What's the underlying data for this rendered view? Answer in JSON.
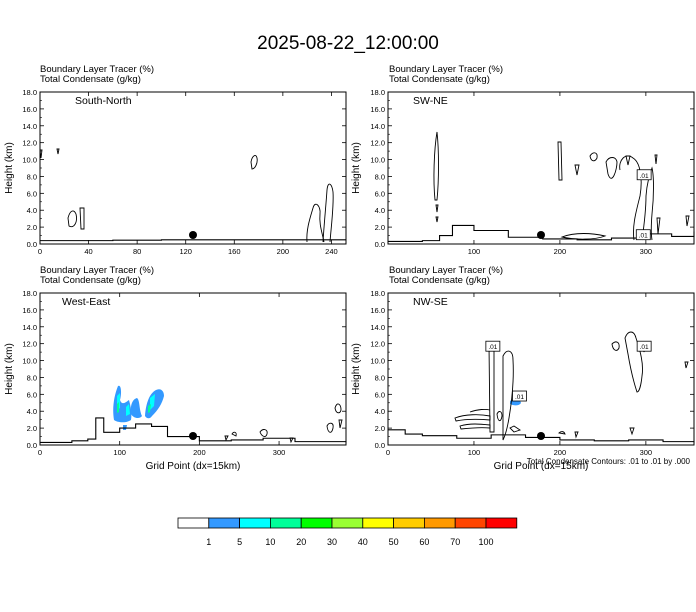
{
  "main_title": "2025-08-22_12:00:00",
  "footnote": "Total Condensate Contours: .01 to .01 by .000",
  "panels": [
    {
      "id": "south-north",
      "name": "South-North",
      "header_line1": "Boundary Layer Tracer   (%)",
      "header_line2": "Total Condensate   (g/kg)",
      "ylabel": "Height (km)",
      "xlabel": "",
      "xlim": [
        0,
        252
      ],
      "ylim": [
        0,
        18
      ],
      "xticks": [
        0,
        40,
        80,
        120,
        160,
        200,
        240
      ],
      "yticks": [
        "0.0",
        "2.0",
        "4.0",
        "6.0",
        "8.0",
        "10.0",
        "12.0",
        "14.0",
        "16.0",
        "18.0"
      ],
      "marker_x": 126,
      "contour_labels": []
    },
    {
      "id": "sw-ne",
      "name": "SW-NE",
      "header_line1": "Boundary Layer Tracer   (%)",
      "header_line2": "Total Condensate   (g/kg)",
      "ylabel": "Height (km)",
      "xlabel": "",
      "xlim": [
        0,
        356
      ],
      "ylim": [
        0,
        18
      ],
      "xticks": [
        100,
        200,
        300
      ],
      "yticks": [
        "0.0",
        "2.0",
        "4.0",
        "6.0",
        "8.0",
        "10.0",
        "12.0",
        "14.0",
        "16.0",
        "18.0"
      ],
      "marker_x": 178,
      "contour_labels": [
        {
          "text": ".01",
          "x": 298,
          "y": 8.2
        },
        {
          "text": ".01",
          "x": 297,
          "y": 1.1
        }
      ]
    },
    {
      "id": "west-east",
      "name": "West-East",
      "header_line1": "Boundary Layer Tracer   (%)",
      "header_line2": "Total Condensate   (g/kg)",
      "ylabel": "Height (km)",
      "xlabel": "Grid Point (dx=15km)",
      "xlim": [
        0,
        384
      ],
      "ylim": [
        0,
        18
      ],
      "xticks": [
        0,
        100,
        200,
        300
      ],
      "yticks": [
        "0.0",
        "2.0",
        "4.0",
        "6.0",
        "8.0",
        "10.0",
        "12.0",
        "14.0",
        "16.0",
        "18.0"
      ],
      "marker_x": 192,
      "contour_labels": []
    },
    {
      "id": "nw-se",
      "name": "NW-SE",
      "header_line1": "Boundary Layer Tracer   (%)",
      "header_line2": "Total Condensate   (g/kg)",
      "ylabel": "Height (km)",
      "xlabel": "Grid Point (dx=15km)",
      "xlim": [
        0,
        356
      ],
      "ylim": [
        0,
        18
      ],
      "xticks": [
        0,
        100,
        200,
        300
      ],
      "yticks": [
        "0.0",
        "2.0",
        "4.0",
        "6.0",
        "8.0",
        "10.0",
        "12.0",
        "14.0",
        "16.0",
        "18.0"
      ],
      "marker_x": 178,
      "contour_labels": [
        {
          "text": ".01",
          "x": 122,
          "y": 11.7
        },
        {
          "text": ".01",
          "x": 153,
          "y": 5.8
        },
        {
          "text": ".01",
          "x": 298,
          "y": 11.7
        }
      ]
    }
  ],
  "colorbar": {
    "labels": [
      "1",
      "5",
      "10",
      "20",
      "30",
      "40",
      "50",
      "60",
      "70",
      "100"
    ],
    "colors": [
      "#ffffff",
      "#3399ff",
      "#00ffff",
      "#00ff99",
      "#00ff00",
      "#99ff33",
      "#ffff00",
      "#ffcc00",
      "#ff9900",
      "#ff4500",
      "#ff0000"
    ]
  },
  "chart_data": [
    {
      "type": "heatmap",
      "title": "South-North",
      "subtitle": "Boundary Layer Tracer (%) / Total Condensate (g/kg)",
      "ylabel": "Height (km)",
      "xlim": [
        0,
        252
      ],
      "ylim": [
        0,
        18
      ],
      "boundary_layer_tracer": "no shaded values",
      "condensate_contour_level": 0.01,
      "pbl_top_profile": {
        "x": [
          0,
          20,
          60,
          100,
          126,
          160,
          200,
          240,
          252
        ],
        "y": [
          0.4,
          0.4,
          0.45,
          0.5,
          0.5,
          0.5,
          0.5,
          0.5,
          0.5
        ]
      }
    },
    {
      "type": "heatmap",
      "title": "SW-NE",
      "subtitle": "Boundary Layer Tracer (%) / Total Condensate (g/kg)",
      "ylabel": "Height (km)",
      "xlim": [
        0,
        356
      ],
      "ylim": [
        0,
        18
      ],
      "boundary_layer_tracer": "no shaded values",
      "condensate_contour_level": 0.01,
      "pbl_top_profile": {
        "x": [
          0,
          40,
          60,
          75,
          100,
          140,
          180,
          220,
          260,
          300,
          330,
          356
        ],
        "y": [
          0.3,
          0.4,
          1.0,
          2.2,
          1.6,
          0.8,
          0.6,
          0.5,
          0.7,
          1.2,
          0.9,
          1.5
        ]
      }
    },
    {
      "type": "heatmap",
      "title": "West-East",
      "subtitle": "Boundary Layer Tracer (%) / Total Condensate (g/kg)",
      "ylabel": "Height (km)",
      "xlabel": "Grid Point (dx=15km)",
      "xlim": [
        0,
        384
      ],
      "ylim": [
        0,
        18
      ],
      "boundary_layer_tracer_shading": "1-10 % between x 90-155, z 1.5-6.5 km",
      "condensate_contour_level": 0.01,
      "pbl_top_profile": {
        "x": [
          0,
          40,
          60,
          70,
          80,
          100,
          120,
          140,
          160,
          200,
          240,
          280,
          320,
          384
        ],
        "y": [
          0.3,
          0.5,
          0.7,
          3.2,
          1.5,
          2.0,
          2.5,
          2.2,
          1.0,
          0.5,
          0.6,
          0.8,
          0.4,
          0.3
        ]
      }
    },
    {
      "type": "heatmap",
      "title": "NW-SE",
      "subtitle": "Boundary Layer Tracer (%) / Total Condensate (g/kg)",
      "ylabel": "Height (km)",
      "xlabel": "Grid Point (dx=15km)",
      "xlim": [
        0,
        356
      ],
      "ylim": [
        0,
        18
      ],
      "boundary_layer_tracer_shading": "1-5 % small patch near x 155, z 5 km",
      "condensate_contour_level": 0.01,
      "pbl_top_profile": {
        "x": [
          0,
          20,
          40,
          80,
          120,
          160,
          200,
          240,
          280,
          320,
          356
        ],
        "y": [
          1.8,
          1.3,
          1.1,
          0.8,
          1.2,
          0.9,
          0.6,
          0.5,
          0.6,
          0.4,
          0.3
        ]
      }
    }
  ]
}
